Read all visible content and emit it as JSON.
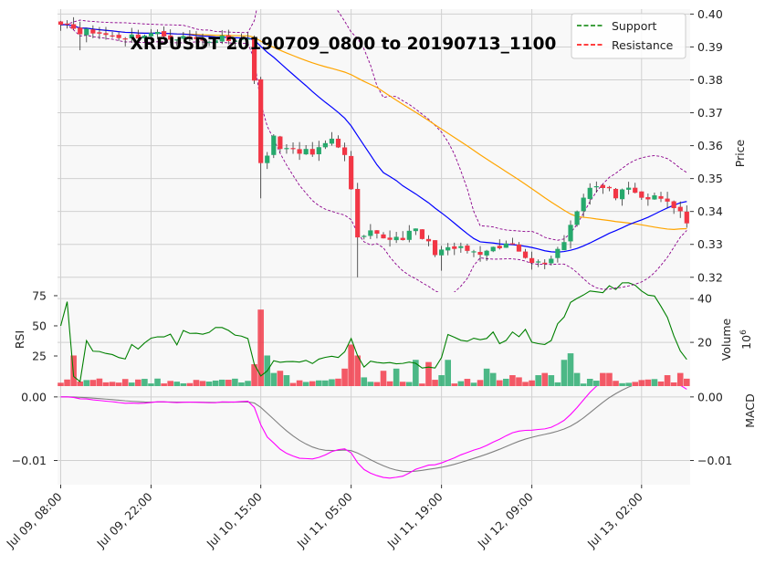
{
  "chart_data": {
    "type": "candlestick",
    "title": "XRPUSDT 20190709_0800 to 20190713_1100",
    "legend": {
      "placement": "top-right",
      "entries": [
        {
          "label": "Support",
          "color": "#008000",
          "style": "dashed"
        },
        {
          "label": "Resistance",
          "color": "#ff0000",
          "style": "dashed"
        }
      ]
    },
    "grid": true,
    "colors": {
      "up": "#26a96c",
      "down": "#f23645",
      "ma_fast": "#0000ff",
      "ma_slow": "#ffa500",
      "bollinger": "#8b008b",
      "rsi": "#008000",
      "macd": "#ff00ff",
      "signal": "#808080",
      "panel_bg": "#f8f8f8"
    },
    "x_tick_labels": [
      "Jul 09, 08:00",
      "Jul 09, 22:00",
      "Jul 10, 15:00",
      "Jul 11, 05:00",
      "Jul 11, 19:00",
      "Jul 12, 09:00",
      "Jul 13, 02:00"
    ],
    "x_tick_index": [
      0,
      14,
      31,
      45,
      59,
      73,
      90
    ],
    "price_panel": {
      "ylabel": "Price",
      "ylim": [
        0.3155,
        0.4015
      ],
      "yticks": [
        0.32,
        0.33,
        0.34,
        0.35,
        0.36,
        0.37,
        0.38,
        0.39,
        0.4
      ],
      "ytick_labels": [
        "0.32",
        "0.33",
        "0.34",
        "0.35",
        "0.36",
        "0.37",
        "0.38",
        "0.39",
        "0.40"
      ]
    },
    "volume_panel": {
      "ylabel": "Volume",
      "unit_label": "10",
      "unit_exp": "6",
      "ylim": [
        0,
        43
      ],
      "yticks": [
        20,
        40
      ],
      "ytick_labels": [
        "20",
        "40"
      ]
    },
    "rsi_panel": {
      "ylabel": "RSI",
      "ylim": [
        0,
        78
      ],
      "yticks": [
        25,
        50,
        75
      ],
      "ytick_labels": [
        "25",
        "50",
        "75"
      ]
    },
    "macd_panel": {
      "ylabel": "MACD",
      "ylim": [
        -0.0138,
        0.0017
      ],
      "yticks": [
        0.0,
        -0.01
      ],
      "ytick_labels_left": [
        "0.00",
        "−0.01"
      ],
      "ytick_labels_right": [
        "0.00",
        "−0.01"
      ]
    }
  }
}
